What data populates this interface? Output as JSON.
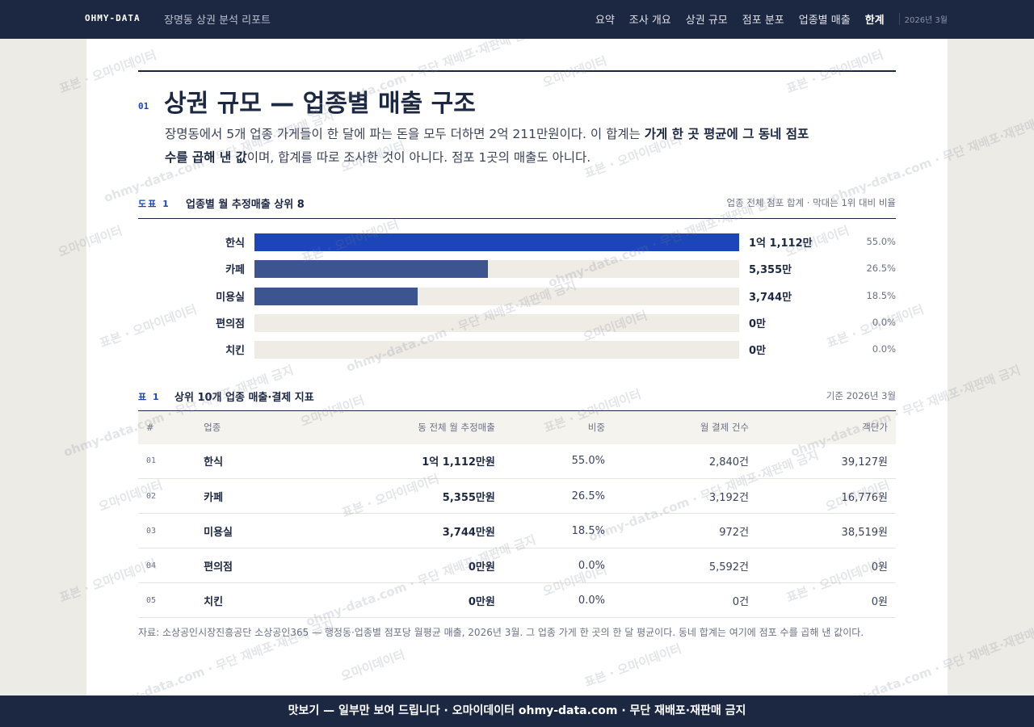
{
  "nav": {
    "brand": "OHMY-DATA",
    "subtitle": "장명동 상권 분석 리포트",
    "links": [
      "요약",
      "조사 개요",
      "상권 규모",
      "점포 분포",
      "업종별 매출",
      "한계"
    ],
    "date": "2026년 3월"
  },
  "section": {
    "number": "01",
    "title": "상권 규모 — 업종별 매출 구조",
    "lead": [
      {
        "text": "장명동에서 5개 업종 가게들이 한 달에 파는 돈을 모두 더하면 2억 211만원이다. 이 합계는 ",
        "bold": false
      },
      {
        "text": "가게 한 곳 평균에 그 동네 점포 수를 곱해 낸 값",
        "bold": true
      },
      {
        "text": "이며, 합계를 따로 조사한 것이 아니다. 점포 1곳의 매출도 아니다.",
        "bold": false
      }
    ]
  },
  "chart_data": {
    "type": "hbar",
    "label": "도표 1",
    "title": "업종별 월 추정매출 상위 8",
    "note": "업종 전체 점포 합계 · 막대는 1위 대비 비율",
    "categories": [
      "한식",
      "카페",
      "미용실",
      "편의점",
      "치킨"
    ],
    "values": [
      11112,
      5355,
      3744,
      0,
      0
    ],
    "value_labels": [
      "1억 1,112만",
      "5,355만",
      "3,744만",
      "0만",
      "0만"
    ],
    "share_labels": [
      "55.0%",
      "26.5%",
      "18.5%",
      "0.0%",
      "0.0%"
    ],
    "colors": [
      "#1b45b9",
      "#3c5590",
      "#3c5590",
      "#8b93a8",
      "#8b93a8"
    ],
    "xlim": [
      0,
      11112
    ]
  },
  "table": {
    "label": "표 1",
    "title": "상위 10개 업종 매출·결제 지표",
    "note": "기준 2026년 3월",
    "headers": [
      "#",
      "업종",
      "동 전체 월 추정매출",
      "비중",
      "월 결제 건수",
      "객단가"
    ],
    "rows": [
      [
        "01",
        "한식",
        "1억 1,112만원",
        "55.0%",
        "2,840건",
        "39,127원"
      ],
      [
        "02",
        "카페",
        "5,355만원",
        "26.5%",
        "3,192건",
        "16,776원"
      ],
      [
        "03",
        "미용실",
        "3,744만원",
        "18.5%",
        "972건",
        "38,519원"
      ],
      [
        "04",
        "편의점",
        "0만원",
        "0.0%",
        "5,592건",
        "0원"
      ],
      [
        "05",
        "치킨",
        "0만원",
        "0.0%",
        "0건",
        "0원"
      ]
    ],
    "source": "자료: 소상공인시장진흥공단 소상공인365 — 행정동·업종별 점포당 월평균 매출, 2026년 3월. 그 업종 가게 한 곳의 한 달 평균이다. 동네 합계는 여기에 점포 수를 곱해 낸 값이다."
  },
  "footer": "맛보기 — 일부만 보여 드립니다 · 오마이데이터 ohmy-data.com · 무단 재배포·재판매 금지",
  "watermarks": [
    "표본 · 오마이데이터",
    "ohmy-data.com · 무단 재배포·재판매 금지",
    "오마이데이터"
  ]
}
